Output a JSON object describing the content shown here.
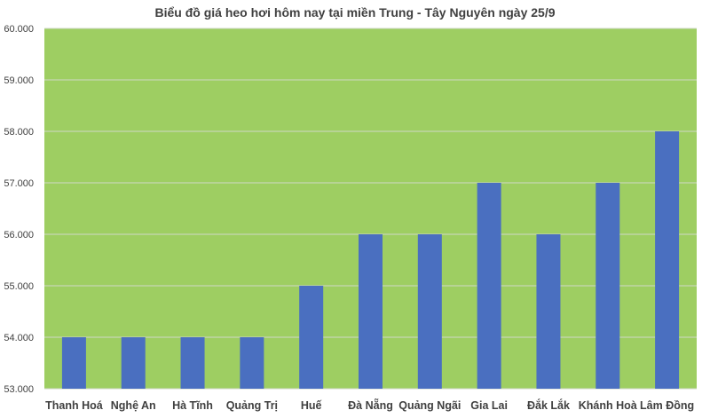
{
  "chart_data": {
    "type": "bar",
    "title": "Biểu đồ giá heo hơi hôm nay tại miền Trung - Tây Nguyên ngày 25/9",
    "categories": [
      "Thanh Hoá",
      "Nghệ An",
      "Hà Tĩnh",
      "Quảng Trị",
      "Huế",
      "Đà Nẵng",
      "Quảng Ngãi",
      "Gia Lai",
      "Đắk Lắk",
      "Khánh Hoà",
      "Lâm Đồng"
    ],
    "values": [
      54000,
      54000,
      54000,
      54000,
      55000,
      56000,
      56000,
      57000,
      56000,
      57000,
      58000
    ],
    "xlabel": "",
    "ylabel": "",
    "ylim": [
      53000,
      60000
    ],
    "yticks": [
      "53.000",
      "54.000",
      "55.000",
      "56.000",
      "57.000",
      "58.000",
      "59.000",
      "60.000"
    ],
    "grid": true,
    "legend": "none",
    "colors": {
      "bar": "#4A6FC0",
      "plot_background": "#9ECE62",
      "gridline": "#D0D8C8"
    }
  }
}
